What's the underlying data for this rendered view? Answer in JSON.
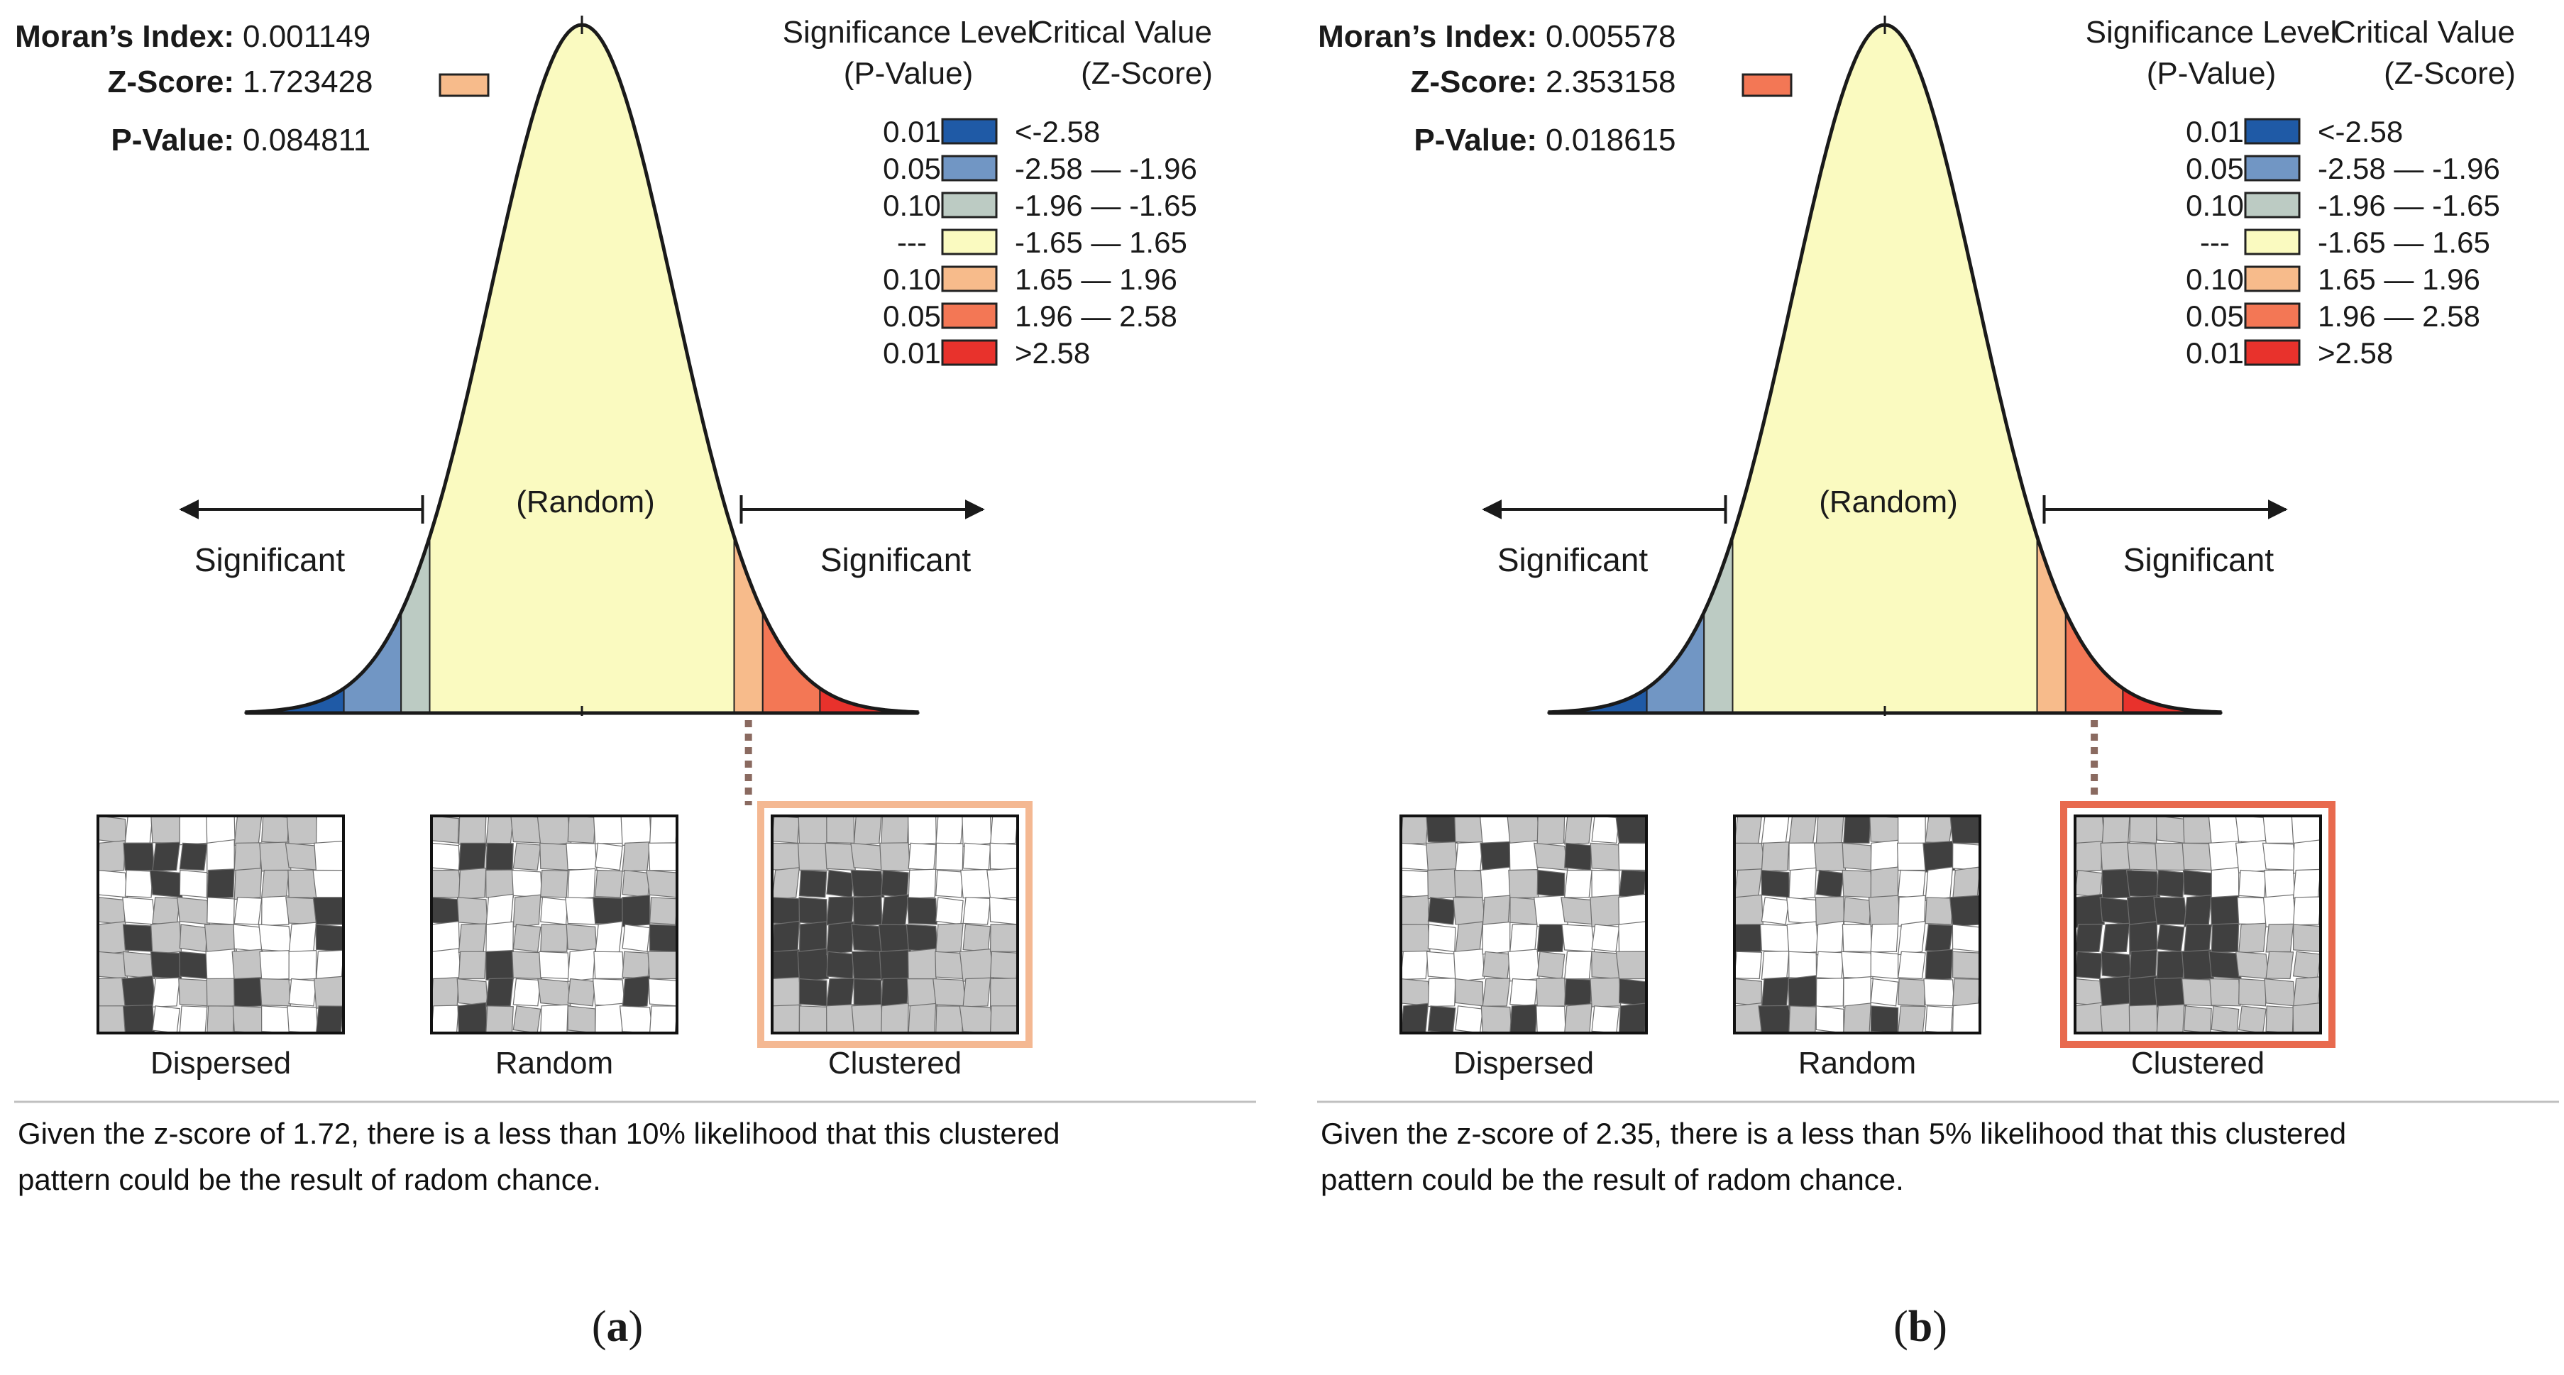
{
  "palette": {
    "p01_neg": "#1f5aa6",
    "p05_neg": "#7196c4",
    "p10_neg": "#bccbc3",
    "random": "#fafac0",
    "p10_pos": "#f7bb8b",
    "p05_pos": "#f37755",
    "p01_pos": "#e8322c",
    "curve": "#1a1a1a",
    "text": "#1a1a1a",
    "caption": "#111111",
    "divider": "#c0c0c0",
    "thumb_dark": "#404040",
    "thumb_light": "#c4c4c4",
    "thumb_white": "#ffffff",
    "thumb_border": "#111111"
  },
  "panels": [
    {
      "id": "a",
      "morans_label": "Moran’s Index:",
      "morans_value": "0.001149",
      "z_label": "Z-Score:",
      "z_value": "1.723428",
      "p_label": "P-Value:",
      "p_value": "0.084811",
      "z_swatch_color": "#f7bb8b",
      "significance_header": [
        "Significance Level",
        "(P-Value)"
      ],
      "critical_header": [
        "Critical Value",
        "(Z-Score)"
      ],
      "legend_rows": [
        {
          "p": "0.01",
          "z": "<-2.58",
          "color": "#1f5aa6"
        },
        {
          "p": "0.05",
          "z": "-2.58 — -1.96",
          "color": "#7196c4"
        },
        {
          "p": "0.10",
          "z": "-1.96 — -1.65",
          "color": "#bccbc3"
        },
        {
          "p": "---",
          "z": "-1.65 — 1.65",
          "color": "#fafac0"
        },
        {
          "p": "0.10",
          "z": "1.65 — 1.96",
          "color": "#f7bb8b"
        },
        {
          "p": "0.05",
          "z": "1.96 — 2.58",
          "color": "#f37755"
        },
        {
          "p": "0.01",
          "z": ">2.58",
          "color": "#e8322c"
        }
      ],
      "random_label": "(Random)",
      "significant_left": "Significant",
      "significant_right": "Significant",
      "z_score": 1.723428,
      "highlight_zone": "p10_pos",
      "highlight_border_color": "#f4b892",
      "thumb_labels": [
        "Dispersed",
        "Random",
        "Clustered"
      ],
      "caption": [
        "Given the z-score of 1.72, there is a less than 10% likelihood that this clustered",
        " pattern could be  the result of radom chance."
      ],
      "panel_letter": "a"
    },
    {
      "id": "b",
      "morans_label": "Moran’s Index:",
      "morans_value": "0.005578",
      "z_label": "Z-Score:",
      "z_value": "2.353158",
      "p_label": "P-Value:",
      "p_value": "0.018615",
      "z_swatch_color": "#f37755",
      "significance_header": [
        "Significance Level",
        "(P-Value)"
      ],
      "critical_header": [
        "Critical Value",
        "(Z-Score)"
      ],
      "legend_rows": [
        {
          "p": "0.01",
          "z": "<-2.58",
          "color": "#1f5aa6"
        },
        {
          "p": "0.05",
          "z": "-2.58 — -1.96",
          "color": "#7196c4"
        },
        {
          "p": "0.10",
          "z": "-1.96 — -1.65",
          "color": "#bccbc3"
        },
        {
          "p": "---",
          "z": "-1.65 — 1.65",
          "color": "#fafac0"
        },
        {
          "p": "0.10",
          "z": "1.65 — 1.96",
          "color": "#f7bb8b"
        },
        {
          "p": "0.05",
          "z": "1.96 — 2.58",
          "color": "#f37755"
        },
        {
          "p": "0.01",
          "z": ">2.58",
          "color": "#e8322c"
        }
      ],
      "random_label": "(Random)",
      "significant_left": "Significant",
      "significant_right": "Significant",
      "z_score": 2.353158,
      "highlight_zone": "p05_pos",
      "highlight_border_color": "#e86a4e",
      "thumb_labels": [
        "Dispersed",
        "Random",
        "Clustered"
      ],
      "caption": [
        "Given the z-score of 2.35, there is a less than 5% likelihood that this clustered",
        "pattern could be  the result of radom chance."
      ],
      "panel_letter": "b"
    }
  ]
}
